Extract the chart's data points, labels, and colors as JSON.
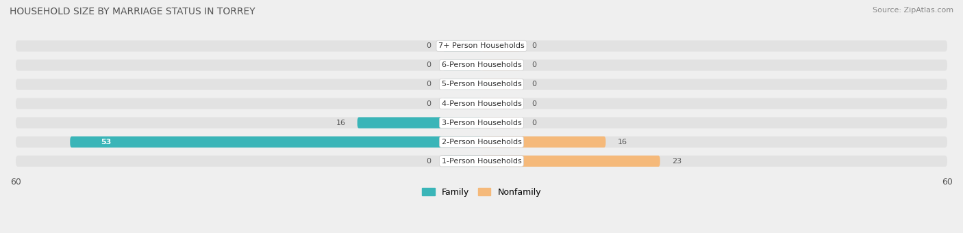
{
  "title": "HOUSEHOLD SIZE BY MARRIAGE STATUS IN TORREY",
  "source": "Source: ZipAtlas.com",
  "categories": [
    "7+ Person Households",
    "6-Person Households",
    "5-Person Households",
    "4-Person Households",
    "3-Person Households",
    "2-Person Households",
    "1-Person Households"
  ],
  "family_values": [
    0,
    0,
    0,
    0,
    16,
    53,
    0
  ],
  "nonfamily_values": [
    0,
    0,
    0,
    0,
    0,
    16,
    23
  ],
  "family_color": "#3ab5b8",
  "nonfamily_color": "#f5b97a",
  "bar_height": 0.58,
  "zero_bar_size": 5,
  "xlim": [
    -60,
    60
  ],
  "background_color": "#efefef",
  "bar_background_color": "#e2e2e2",
  "label_bg_color": "#ffffff",
  "title_fontsize": 10,
  "source_fontsize": 8,
  "tick_fontsize": 9,
  "legend_fontsize": 9,
  "value_fontsize": 8
}
